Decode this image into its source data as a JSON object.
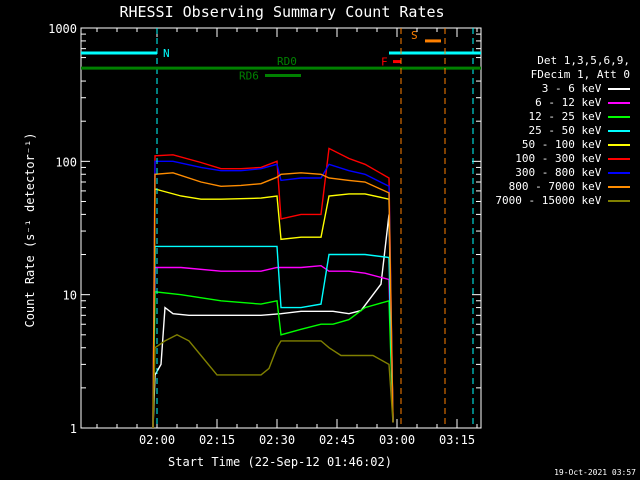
{
  "chart_data": {
    "type": "line",
    "title": "RHESSI Observing Summary Count Rates",
    "xlabel": "Start Time (22-Sep-12 01:46:02)",
    "ylabel": "Count Rate (s⁻¹ detector⁻¹)",
    "y_scale": "log",
    "ylim": [
      1,
      1000
    ],
    "x_unit": "minutes after 01:46:02",
    "xlim": [
      -5,
      95
    ],
    "x_ticks": [
      {
        "label": "02:00",
        "value": 14
      },
      {
        "label": "02:15",
        "value": 29
      },
      {
        "label": "02:30",
        "value": 44
      },
      {
        "label": "02:45",
        "value": 59
      },
      {
        "label": "03:00",
        "value": 74
      },
      {
        "label": "03:15",
        "value": 89
      }
    ],
    "y_ticks": [
      {
        "label": "1",
        "value": 1
      },
      {
        "label": "10",
        "value": 10
      },
      {
        "label": "100",
        "value": 100
      },
      {
        "label": "1000",
        "value": 1000
      }
    ],
    "legend_header": [
      "Det 1,3,5,6,9,",
      "FDecim 1, Att 0"
    ],
    "legend_placement": "right",
    "grid": false,
    "series": [
      {
        "name": "3 - 6 keV",
        "color": "#ffffff",
        "x": [
          13,
          13.5,
          15,
          16,
          18,
          22,
          30,
          40,
          45,
          50,
          55,
          58,
          62,
          65,
          70,
          72,
          73
        ],
        "y": [
          1,
          2.5,
          3,
          8,
          7.2,
          7,
          7,
          7,
          7.2,
          7.5,
          7.5,
          7.5,
          7.2,
          7.6,
          12,
          40,
          1.1
        ]
      },
      {
        "name": "6 - 12 keV",
        "color": "#ff00ff",
        "x": [
          13,
          13.5,
          20,
          30,
          40,
          44,
          50,
          55,
          57,
          62,
          66,
          72,
          73
        ],
        "y": [
          1,
          16,
          16,
          15,
          15,
          16,
          16,
          16.5,
          15,
          15,
          14.5,
          13,
          1.1
        ]
      },
      {
        "name": "12 - 25 keV",
        "color": "#00ff00",
        "x": [
          13,
          13.5,
          20,
          30,
          40,
          44,
          45,
          50,
          55,
          58,
          62,
          66,
          72,
          73
        ],
        "y": [
          1,
          10.5,
          10,
          9,
          8.5,
          9,
          5,
          5.5,
          6,
          6,
          6.5,
          8,
          9,
          1.1
        ]
      },
      {
        "name": "25 - 50 keV",
        "color": "#00ffff",
        "x": [
          13,
          13.5,
          20,
          30,
          40,
          44,
          45,
          50,
          55,
          57,
          62,
          66,
          72,
          73
        ],
        "y": [
          1,
          23,
          23,
          23,
          23,
          23,
          8,
          8,
          8.5,
          20,
          20,
          20,
          19,
          1.1
        ]
      },
      {
        "name": "50 - 100 keV",
        "color": "#ffff00",
        "x": [
          13,
          13.5,
          20,
          25,
          30,
          40,
          44,
          45,
          50,
          55,
          57,
          62,
          66,
          72,
          73
        ],
        "y": [
          1,
          62,
          55,
          52,
          52,
          53,
          55,
          26,
          27,
          27,
          55,
          57,
          57,
          52,
          1.1
        ]
      },
      {
        "name": "100 - 300 keV",
        "color": "#ff0000",
        "x": [
          13,
          13.5,
          18,
          25,
          30,
          35,
          40,
          44,
          45,
          50,
          55,
          57,
          62,
          66,
          72,
          73
        ],
        "y": [
          1,
          110,
          112,
          98,
          88,
          88,
          90,
          100,
          37,
          40,
          40,
          125,
          105,
          95,
          75,
          1.1
        ]
      },
      {
        "name": "300 - 800 keV",
        "color": "#0000ff",
        "x": [
          13,
          13.5,
          18,
          25,
          30,
          35,
          40,
          44,
          45,
          50,
          55,
          57,
          62,
          66,
          72,
          73
        ],
        "y": [
          1,
          100,
          100,
          90,
          85,
          85,
          88,
          95,
          72,
          75,
          75,
          95,
          85,
          80,
          65,
          1.1
        ]
      },
      {
        "name": "800 - 7000 keV",
        "color": "#ff8c00",
        "x": [
          13,
          13.5,
          18,
          25,
          30,
          35,
          40,
          44,
          45,
          50,
          55,
          57,
          62,
          66,
          72,
          73
        ],
        "y": [
          1,
          80,
          82,
          70,
          65,
          66,
          68,
          76,
          80,
          82,
          80,
          75,
          72,
          70,
          58,
          1.1
        ]
      },
      {
        "name": "7000 - 15000 keV",
        "color": "#808000",
        "x": [
          13,
          13.5,
          16,
          19,
          22,
          25,
          29,
          35,
          40,
          42,
          44,
          45,
          48,
          52,
          55,
          57,
          60,
          64,
          68,
          72,
          73
        ],
        "y": [
          1,
          4,
          4.5,
          5,
          4.5,
          3.5,
          2.5,
          2.5,
          2.5,
          2.8,
          4,
          4.5,
          4.5,
          4.5,
          4.5,
          4,
          3.5,
          3.5,
          3.5,
          3,
          1.1
        ]
      }
    ],
    "state_bars": [
      {
        "label": "N",
        "color": "#00ffff",
        "y": 650,
        "segments": [
          [
            -5,
            14
          ],
          [
            72,
            95
          ]
        ],
        "markers": [
          14,
          93
        ]
      },
      {
        "label": "RD0",
        "color": "#008000",
        "y": 500,
        "segments": [
          [
            -5,
            95
          ]
        ]
      },
      {
        "label": "RD6",
        "color": "#008000",
        "y": 440,
        "segments": [
          [
            41,
            50
          ]
        ]
      },
      {
        "label": "F",
        "color": "#ff0000",
        "y": 560,
        "segments": [
          [
            73,
            75
          ]
        ]
      },
      {
        "label": "S",
        "color": "#ff8000",
        "y": 800,
        "segments": [
          [
            81,
            85
          ]
        ],
        "markers": [
          75,
          86
        ]
      }
    ]
  },
  "footer": {
    "timestamp": "19-Oct-2021 03:57"
  }
}
